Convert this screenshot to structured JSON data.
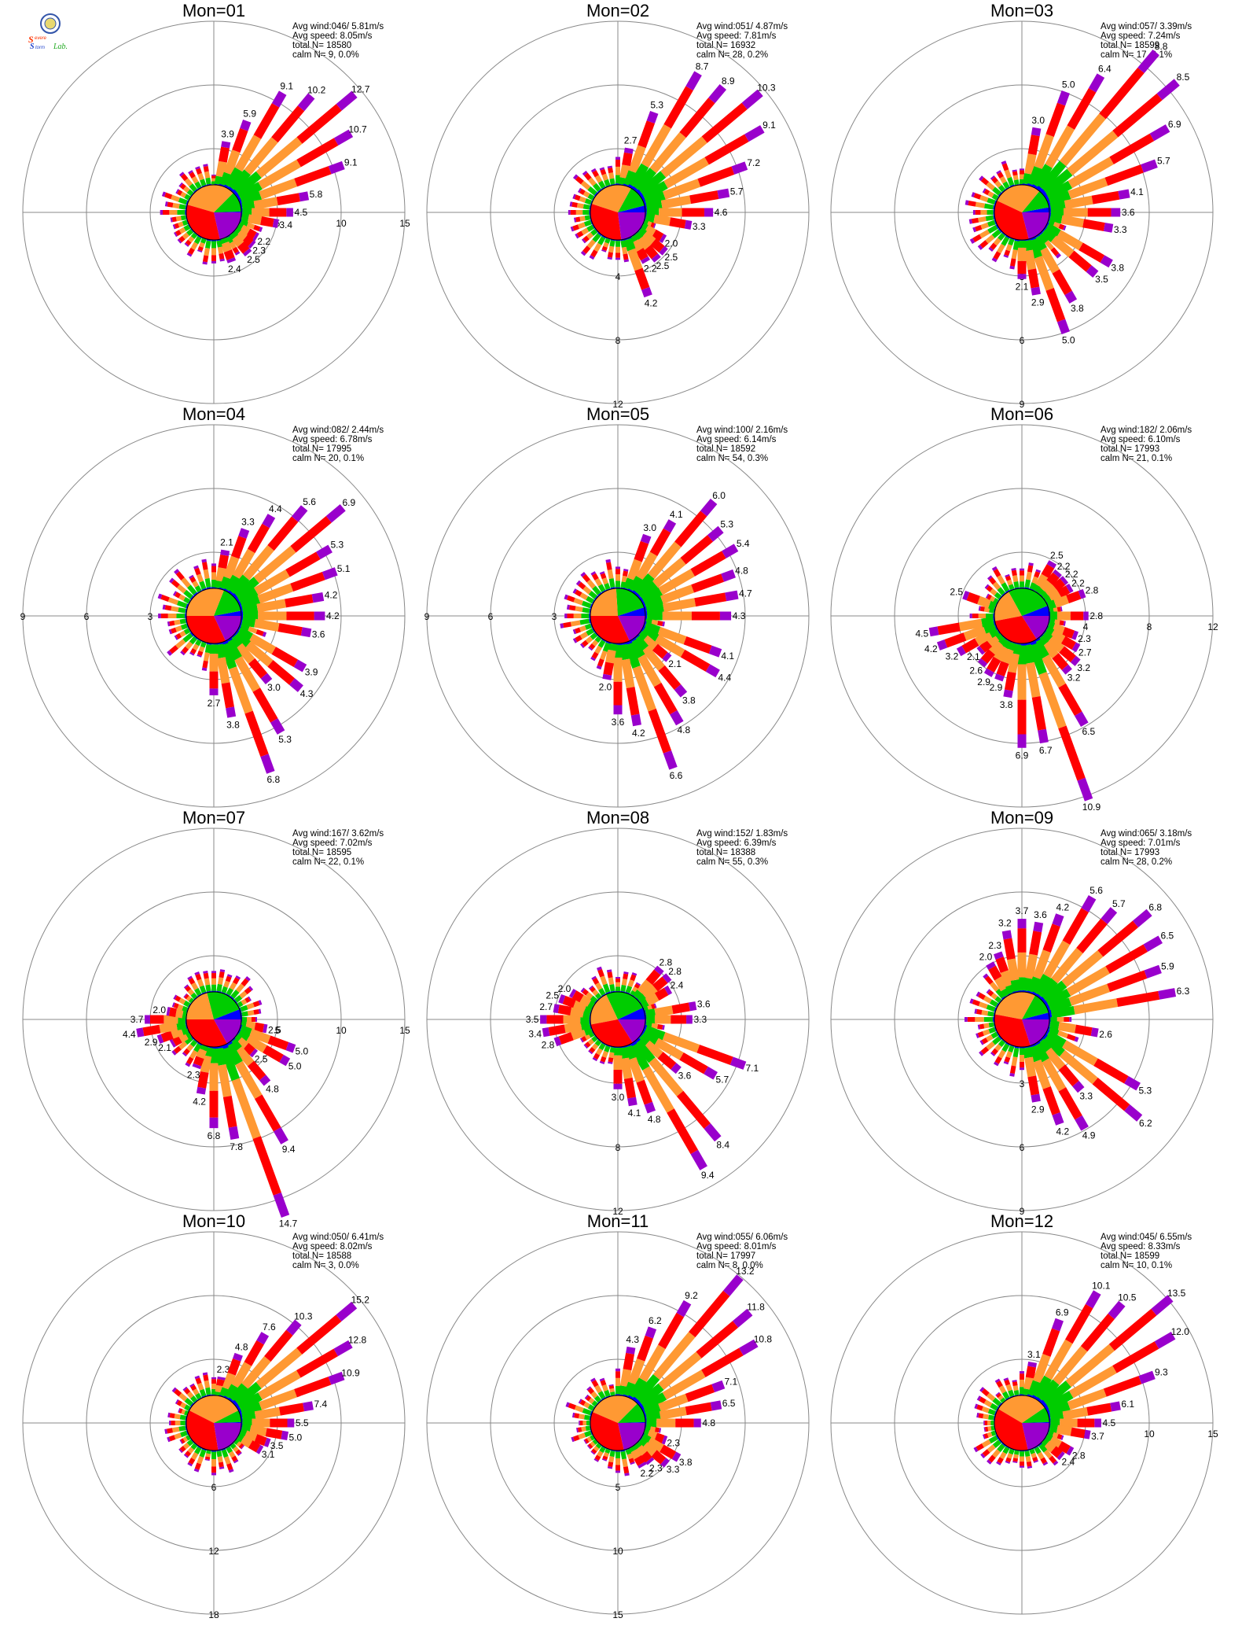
{
  "figure": {
    "logo_lines": [
      "Severe",
      "Storm",
      "Lab."
    ],
    "colors": {
      "bg": "#ffffff",
      "axis": "#888888",
      "blue": "#0000ff",
      "green": "#00cc00",
      "orange": "#ff9933",
      "red": "#ff0000",
      "purple": "#9900cc"
    }
  },
  "chart_data": [
    {
      "type": "wind-rose",
      "title": "Mon=01",
      "stats": [
        "Avg wind:046/ 5.81m/s",
        "Avg speed: 8.05m/s",
        "total N=      18580",
        "calm N=     9,   0.0%"
      ],
      "radial_ticks": [
        5,
        10,
        15
      ],
      "tick_labels": [
        "5",
        "10",
        "15"
      ],
      "tick_axis": "east",
      "labels": [
        [
          10,
          "3.9"
        ],
        [
          20,
          "5.9"
        ],
        [
          30,
          "9.1"
        ],
        [
          40,
          "10.2"
        ],
        [
          50,
          "12.7"
        ],
        [
          60,
          "10.7"
        ],
        [
          70,
          "9.1"
        ],
        [
          80,
          "5.8"
        ],
        [
          90,
          "4.5"
        ],
        [
          100,
          "3.4"
        ],
        [
          120,
          "2.2"
        ],
        [
          130,
          "2.3"
        ],
        [
          140,
          "2.5"
        ],
        [
          160,
          "2.4"
        ]
      ],
      "pie": [
        0.005,
        0.12,
        0.33,
        0.33,
        0.215
      ]
    },
    {
      "type": "wind-rose",
      "title": "Mon=02",
      "stats": [
        "Avg wind:051/ 4.87m/s",
        "Avg speed: 7.81m/s",
        "total N=      16932",
        "calm N=    28,   0.2%"
      ],
      "radial_ticks": [
        4,
        8,
        12
      ],
      "tick_labels": [
        "4",
        "8",
        "12"
      ],
      "tick_axis": "south",
      "labels": [
        [
          10,
          "2.7"
        ],
        [
          20,
          "5.3"
        ],
        [
          30,
          "8.7"
        ],
        [
          40,
          "8.9"
        ],
        [
          50,
          "10.3"
        ],
        [
          60,
          "9.1"
        ],
        [
          70,
          "7.2"
        ],
        [
          80,
          "5.7"
        ],
        [
          90,
          "4.6"
        ],
        [
          100,
          "3.3"
        ],
        [
          120,
          "2.0"
        ],
        [
          130,
          "2.5"
        ],
        [
          140,
          "2.5"
        ],
        [
          150,
          "2.2"
        ],
        [
          160,
          "4.2"
        ]
      ],
      "pie": [
        0.04,
        0.13,
        0.28,
        0.32,
        0.23
      ]
    },
    {
      "type": "wind-rose",
      "title": "Mon=03",
      "stats": [
        "Avg wind:057/ 3.39m/s",
        "Avg speed: 7.24m/s",
        "total N=      18599",
        "calm N=    17,   0.1%"
      ],
      "radial_ticks": [
        3,
        6,
        9
      ],
      "tick_labels": [
        "3",
        "6",
        "9"
      ],
      "tick_axis": "south",
      "labels": [
        [
          10,
          "3.0"
        ],
        [
          20,
          "5.0"
        ],
        [
          30,
          "6.4"
        ],
        [
          40,
          "8.8"
        ],
        [
          50,
          "8.5"
        ],
        [
          60,
          "6.9"
        ],
        [
          70,
          "5.7"
        ],
        [
          80,
          "4.1"
        ],
        [
          90,
          "3.6"
        ],
        [
          100,
          "3.3"
        ],
        [
          120,
          "3.8"
        ],
        [
          130,
          "3.5"
        ],
        [
          150,
          "3.8"
        ],
        [
          160,
          "5.0"
        ],
        [
          170,
          "2.9"
        ],
        [
          180,
          "2.1"
        ]
      ],
      "pie": [
        0.03,
        0.11,
        0.29,
        0.36,
        0.21
      ]
    },
    {
      "type": "wind-rose",
      "title": "Mon=04",
      "stats": [
        "Avg wind:082/ 2.44m/s",
        "Avg speed: 6.78m/s",
        "total N=      17995",
        "calm N=    20,   0.1%"
      ],
      "radial_ticks": [
        3,
        6,
        9
      ],
      "tick_labels": [
        "3",
        "6",
        "9"
      ],
      "tick_axis": "west",
      "labels": [
        [
          10,
          "2.1"
        ],
        [
          20,
          "3.3"
        ],
        [
          30,
          "4.4"
        ],
        [
          40,
          "5.6"
        ],
        [
          50,
          "6.9"
        ],
        [
          60,
          "5.3"
        ],
        [
          70,
          "5.1"
        ],
        [
          80,
          "4.2"
        ],
        [
          90,
          "4.2"
        ],
        [
          100,
          "3.6"
        ],
        [
          120,
          "3.9"
        ],
        [
          130,
          "4.3"
        ],
        [
          140,
          "3.0"
        ],
        [
          150,
          "5.3"
        ],
        [
          160,
          "6.8"
        ],
        [
          170,
          "3.8"
        ],
        [
          180,
          "2.7"
        ]
      ],
      "pie": [
        0.03,
        0.16,
        0.31,
        0.32,
        0.18
      ]
    },
    {
      "type": "wind-rose",
      "title": "Mon=05",
      "stats": [
        "Avg wind:100/ 2.16m/s",
        "Avg speed: 6.14m/s",
        "total N=      18592",
        "calm N=    54,   0.3%"
      ],
      "radial_ticks": [
        3,
        6,
        9
      ],
      "tick_labels": [
        "3",
        "6",
        "9"
      ],
      "tick_axis": "west",
      "labels": [
        [
          20,
          "3.0"
        ],
        [
          30,
          "4.1"
        ],
        [
          40,
          "6.0"
        ],
        [
          50,
          "5.3"
        ],
        [
          60,
          "5.4"
        ],
        [
          70,
          "4.8"
        ],
        [
          80,
          "4.7"
        ],
        [
          90,
          "4.3"
        ],
        [
          110,
          "4.1"
        ],
        [
          120,
          "4.4"
        ],
        [
          130,
          "2.1"
        ],
        [
          140,
          "3.8"
        ],
        [
          150,
          "4.8"
        ],
        [
          160,
          "6.6"
        ],
        [
          170,
          "4.2"
        ],
        [
          180,
          "3.6"
        ],
        [
          190,
          "2.0"
        ]
      ],
      "pie": [
        0.05,
        0.21,
        0.24,
        0.32,
        0.18
      ]
    },
    {
      "type": "wind-rose",
      "title": "Mon=06",
      "stats": [
        "Avg wind:182/ 2.06m/s",
        "Avg speed: 6.10m/s",
        "total N=      17993",
        "calm N=    21,   0.1%"
      ],
      "radial_ticks": [
        4,
        8,
        12
      ],
      "tick_labels": [
        "4",
        "8",
        "12"
      ],
      "tick_axis": "east",
      "labels": [
        [
          30,
          "2.5"
        ],
        [
          40,
          "2.2"
        ],
        [
          50,
          "2.2"
        ],
        [
          60,
          "2.2"
        ],
        [
          70,
          "2.8"
        ],
        [
          90,
          "2.8"
        ],
        [
          110,
          "2.3"
        ],
        [
          120,
          "2.7"
        ],
        [
          130,
          "3.2"
        ],
        [
          140,
          "3.2"
        ],
        [
          150,
          "6.5"
        ],
        [
          160,
          "10.9"
        ],
        [
          170,
          "6.7"
        ],
        [
          180,
          "6.9"
        ],
        [
          190,
          "3.8"
        ],
        [
          200,
          "2.9"
        ],
        [
          210,
          "2.9"
        ],
        [
          220,
          "2.6"
        ],
        [
          230,
          "2.1"
        ],
        [
          240,
          "3.2"
        ],
        [
          250,
          "4.2"
        ],
        [
          260,
          "4.5"
        ],
        [
          290,
          "2.5"
        ]
      ],
      "pie": [
        0.06,
        0.27,
        0.2,
        0.31,
        0.16
      ]
    },
    {
      "type": "wind-rose",
      "title": "Mon=07",
      "stats": [
        "Avg wind:167/ 3.62m/s",
        "Avg speed: 7.02m/s",
        "total N=      18595",
        "calm N=    22,   0.1%"
      ],
      "radial_ticks": [
        5,
        10,
        15
      ],
      "tick_labels": [
        "5",
        "10",
        "15"
      ],
      "tick_axis": "east",
      "labels": [
        [
          100,
          "2.5"
        ],
        [
          110,
          "5.0"
        ],
        [
          120,
          "5.0"
        ],
        [
          130,
          "2.5"
        ],
        [
          140,
          "4.8"
        ],
        [
          150,
          "9.4"
        ],
        [
          160,
          "14.7"
        ],
        [
          170,
          "7.8"
        ],
        [
          180,
          "6.8"
        ],
        [
          190,
          "4.2"
        ],
        [
          200,
          "2.3"
        ],
        [
          240,
          "2.1"
        ],
        [
          250,
          "2.9"
        ],
        [
          260,
          "4.4"
        ],
        [
          270,
          "3.7"
        ],
        [
          280,
          "2.0"
        ]
      ],
      "pie": [
        0.06,
        0.23,
        0.21,
        0.33,
        0.17
      ]
    },
    {
      "type": "wind-rose",
      "title": "Mon=08",
      "stats": [
        "Avg wind:152/ 1.83m/s",
        "Avg speed: 6.39m/s",
        "total N=      18388",
        "calm N=    55,   0.3%"
      ],
      "radial_ticks": [
        4,
        8,
        12
      ],
      "tick_labels": [
        "4",
        "8",
        "12"
      ],
      "tick_axis": "south",
      "labels": [
        [
          40,
          "2.8"
        ],
        [
          50,
          "2.8"
        ],
        [
          60,
          "2.4"
        ],
        [
          80,
          "3.6"
        ],
        [
          90,
          "3.3"
        ],
        [
          110,
          "7.1"
        ],
        [
          120,
          "5.7"
        ],
        [
          130,
          "3.6"
        ],
        [
          140,
          "8.4"
        ],
        [
          150,
          "9.4"
        ],
        [
          160,
          "4.8"
        ],
        [
          170,
          "4.1"
        ],
        [
          180,
          "3.0"
        ],
        [
          250,
          "2.8"
        ],
        [
          260,
          "3.4"
        ],
        [
          270,
          "3.5"
        ],
        [
          280,
          "2.7"
        ],
        [
          290,
          "2.5"
        ],
        [
          300,
          "2.0"
        ]
      ],
      "pie": [
        0.07,
        0.25,
        0.21,
        0.31,
        0.16
      ]
    },
    {
      "type": "wind-rose",
      "title": "Mon=09",
      "stats": [
        "Avg wind:065/ 3.18m/s",
        "Avg speed: 7.01m/s",
        "total N=      17993",
        "calm N=    28,   0.2%"
      ],
      "radial_ticks": [
        3,
        6,
        9
      ],
      "tick_labels": [
        "3",
        "6",
        "9"
      ],
      "tick_axis": "south",
      "labels": [
        [
          -30,
          "2.0"
        ],
        [
          -20,
          "2.3"
        ],
        [
          -10,
          "3.2"
        ],
        [
          0,
          "3.7"
        ],
        [
          10,
          "3.6"
        ],
        [
          20,
          "4.2"
        ],
        [
          30,
          "5.6"
        ],
        [
          40,
          "5.7"
        ],
        [
          50,
          "6.8"
        ],
        [
          60,
          "6.5"
        ],
        [
          70,
          "5.9"
        ],
        [
          80,
          "6.3"
        ],
        [
          100,
          "2.6"
        ],
        [
          120,
          "5.3"
        ],
        [
          130,
          "6.2"
        ],
        [
          140,
          "3.3"
        ],
        [
          150,
          "4.9"
        ],
        [
          160,
          "4.2"
        ],
        [
          170,
          "2.9"
        ]
      ],
      "pie": [
        0.04,
        0.13,
        0.3,
        0.33,
        0.2
      ]
    },
    {
      "type": "wind-rose",
      "title": "Mon=10",
      "stats": [
        "Avg wind:050/ 6.41m/s",
        "Avg speed: 8.02m/s",
        "total N=      18588",
        "calm N=     3,   0.0%"
      ],
      "radial_ticks": [
        6,
        12,
        18
      ],
      "tick_labels": [
        "6",
        "12",
        "18"
      ],
      "tick_axis": "south",
      "labels": [
        [
          10,
          "2.3"
        ],
        [
          20,
          "4.8"
        ],
        [
          30,
          "7.6"
        ],
        [
          40,
          "10.3"
        ],
        [
          50,
          "15.2"
        ],
        [
          60,
          "12.8"
        ],
        [
          70,
          "10.9"
        ],
        [
          80,
          "7.4"
        ],
        [
          90,
          "5.5"
        ],
        [
          100,
          "5.0"
        ],
        [
          110,
          "3.5"
        ],
        [
          120,
          "3.1"
        ]
      ],
      "pie": [
        0.005,
        0.07,
        0.35,
        0.35,
        0.225
      ]
    },
    {
      "type": "wind-rose",
      "title": "Mon=11",
      "stats": [
        "Avg wind:055/ 6.06m/s",
        "Avg speed: 8.01m/s",
        "total N=      17997",
        "calm N=     8,   0.0%"
      ],
      "radial_ticks": [
        5,
        10,
        15
      ],
      "tick_labels": [
        "5",
        "10",
        "15"
      ],
      "tick_axis": "south",
      "labels": [
        [
          10,
          "4.3"
        ],
        [
          20,
          "6.2"
        ],
        [
          30,
          "9.2"
        ],
        [
          40,
          "13.2"
        ],
        [
          50,
          "11.8"
        ],
        [
          60,
          "10.8"
        ],
        [
          70,
          "7.1"
        ],
        [
          80,
          "6.5"
        ],
        [
          90,
          "4.8"
        ],
        [
          110,
          "2.3"
        ],
        [
          120,
          "3.8"
        ],
        [
          130,
          "3.3"
        ],
        [
          140,
          "2.3"
        ],
        [
          150,
          "2.2"
        ]
      ],
      "pie": [
        0.005,
        0.12,
        0.31,
        0.35,
        0.215
      ]
    },
    {
      "type": "wind-rose",
      "title": "Mon=12",
      "stats": [
        "Avg wind:045/ 6.55m/s",
        "Avg speed: 8.33m/s",
        "total N=      18599",
        "calm N=    10,   0.1%"
      ],
      "radial_ticks": [
        5,
        10,
        15
      ],
      "tick_labels": [
        "5",
        "10",
        "15"
      ],
      "tick_axis": "east",
      "labels": [
        [
          10,
          "3.1"
        ],
        [
          20,
          "6.9"
        ],
        [
          30,
          "10.1"
        ],
        [
          40,
          "10.5"
        ],
        [
          50,
          "13.5"
        ],
        [
          60,
          "12.0"
        ],
        [
          70,
          "9.3"
        ],
        [
          80,
          "6.1"
        ],
        [
          90,
          "4.5"
        ],
        [
          100,
          "3.7"
        ],
        [
          120,
          "2.8"
        ],
        [
          130,
          "2.4"
        ]
      ],
      "pie": [
        0.005,
        0.09,
        0.32,
        0.37,
        0.215
      ]
    }
  ]
}
